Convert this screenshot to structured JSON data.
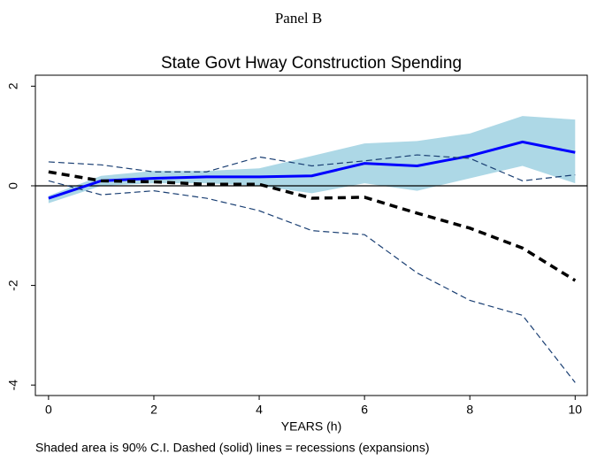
{
  "chart_data": {
    "type": "line",
    "panel_title": "Panel B",
    "title": "State Govt Hway Construction Spending",
    "xlabel": "YEARS (h)",
    "note": "Shaded area is 90% C.I. Dashed (solid) lines = recessions (expansions)",
    "x": [
      0,
      1,
      2,
      3,
      4,
      5,
      6,
      7,
      8,
      9,
      10
    ],
    "xlim": [
      -0.25,
      10.23
    ],
    "xticks": [
      0,
      2,
      4,
      6,
      8,
      10
    ],
    "ylim": [
      -4.21,
      2.22
    ],
    "yticks": [
      -4,
      -2,
      0,
      2
    ],
    "refline": 0,
    "band": {
      "color": "#add8e6",
      "upper": [
        -0.2,
        0.2,
        0.3,
        0.3,
        0.35,
        0.6,
        0.85,
        0.9,
        1.05,
        1.4,
        1.33
      ],
      "lower": [
        -0.35,
        0.0,
        0.05,
        0.05,
        0.0,
        -0.15,
        0.05,
        -0.1,
        0.15,
        0.4,
        0.05
      ]
    },
    "series": [
      {
        "color": "#0000ff",
        "width": 3,
        "dashed": false,
        "values": [
          -0.25,
          0.1,
          0.15,
          0.18,
          0.18,
          0.2,
          0.45,
          0.4,
          0.6,
          0.88,
          0.67
        ]
      },
      {
        "color": "#000000",
        "width": 3.5,
        "dashed": true,
        "values": [
          0.28,
          0.1,
          0.08,
          0.03,
          0.03,
          -0.25,
          -0.23,
          -0.55,
          -0.85,
          -1.25,
          -1.9
        ]
      },
      {
        "color": "#1a3f73",
        "width": 1.2,
        "dashed": true,
        "values": [
          0.48,
          0.42,
          0.28,
          0.28,
          0.58,
          0.4,
          0.5,
          0.62,
          0.55,
          0.1,
          0.22
        ]
      },
      {
        "color": "#1a3f73",
        "width": 1.2,
        "dashed": true,
        "values": [
          0.1,
          -0.18,
          -0.1,
          -0.25,
          -0.5,
          -0.9,
          -0.98,
          -1.75,
          -2.3,
          -2.6,
          -3.95
        ]
      }
    ]
  }
}
